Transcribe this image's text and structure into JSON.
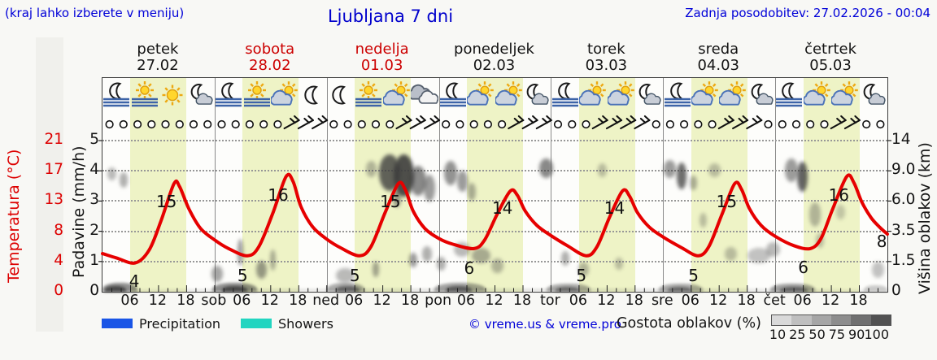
{
  "header": {
    "hint": "(kraj lahko izberete v meniju)",
    "title": "Ljubljana 7 dni",
    "updated": "Zadnja posodobitev: 27.02.2026 - 00:04"
  },
  "colors": {
    "blue_text": "#0000d8",
    "curve_red": "#e60000",
    "holiday_red": "#cc0000",
    "day_band": "#eef3c6",
    "precip_swatch": "#1a55e6",
    "showers_swatch": "#22d5c0"
  },
  "days": [
    {
      "name": "petek",
      "date": "27.02",
      "holiday": false
    },
    {
      "name": "sobota",
      "date": "28.02",
      "holiday": true
    },
    {
      "name": "nedelja",
      "date": "01.03",
      "holiday": true
    },
    {
      "name": "ponedeljek",
      "date": "02.03",
      "holiday": false
    },
    {
      "name": "torek",
      "date": "03.03",
      "holiday": false
    },
    {
      "name": "sreda",
      "date": "04.03",
      "holiday": false
    },
    {
      "name": "četrtek",
      "date": "05.03",
      "holiday": false
    }
  ],
  "axes": {
    "temp_label": "Temperatura (°C)",
    "temp_ticks": [
      "21",
      "17",
      "13",
      "8",
      "4",
      "0"
    ],
    "precip_label": "Padavine (mm/h)",
    "precip_ticks": [
      "5",
      "4",
      "3",
      "2",
      "1",
      "0"
    ],
    "cloud_label": "Višina oblakov (km)",
    "cloud_ticks": [
      "14",
      "9.0",
      "6.0",
      "3.5",
      "1.5",
      "0"
    ],
    "x_labels": [
      {
        "t": 6,
        "text": "06"
      },
      {
        "t": 12,
        "text": "12"
      },
      {
        "t": 18,
        "text": "18"
      },
      {
        "t": 24,
        "text": "sob"
      },
      {
        "t": 30,
        "text": "06"
      },
      {
        "t": 36,
        "text": "12"
      },
      {
        "t": 42,
        "text": "18"
      },
      {
        "t": 48,
        "text": "ned"
      },
      {
        "t": 54,
        "text": "06"
      },
      {
        "t": 60,
        "text": "12"
      },
      {
        "t": 66,
        "text": "18"
      },
      {
        "t": 72,
        "text": "pon"
      },
      {
        "t": 78,
        "text": "06"
      },
      {
        "t": 84,
        "text": "12"
      },
      {
        "t": 90,
        "text": "18"
      },
      {
        "t": 96,
        "text": "tor"
      },
      {
        "t": 102,
        "text": "06"
      },
      {
        "t": 108,
        "text": "12"
      },
      {
        "t": 114,
        "text": "18"
      },
      {
        "t": 120,
        "text": "sre"
      },
      {
        "t": 126,
        "text": "06"
      },
      {
        "t": 132,
        "text": "12"
      },
      {
        "t": 138,
        "text": "18"
      },
      {
        "t": 144,
        "text": "čet"
      },
      {
        "t": 150,
        "text": "06"
      },
      {
        "t": 156,
        "text": "12"
      },
      {
        "t": 162,
        "text": "18"
      }
    ]
  },
  "icons": [
    "moon-fog",
    "sun-fog",
    "sun",
    "moon-cloud",
    "moon-fog",
    "sun-fog",
    "sun-cloud",
    "moon",
    "moon",
    "sun-fog",
    "sun-cloud",
    "cloud",
    "moon-fog",
    "sun-cloud",
    "sun-cloud",
    "moon-cloud",
    "moon-fog",
    "sun-cloud",
    "sun-cloud",
    "moon-cloud",
    "moon-fog",
    "sun-cloud",
    "sun-cloud",
    "moon-cloud",
    "moon-fog",
    "sun-cloud",
    "sun-cloud",
    "moon-cloud"
  ],
  "wind": [
    "cccccccc",
    "cccccbbb",
    "cccccbbb",
    "cccccbbb",
    "cccbbbbc",
    "ccccbbbc",
    "ccccbbcc"
  ],
  "chart_data": {
    "type": "line",
    "title": "Ljubljana 7 dni",
    "x_unit": "hours from 27.02.2026 00:00 (7 days)",
    "x_range": [
      0,
      168
    ],
    "temp_axis_c": [
      0,
      4,
      8,
      13,
      17,
      21
    ],
    "precip_axis_mm_h": [
      0,
      1,
      2,
      3,
      4,
      5
    ],
    "cloud_height_axis_km": [
      0,
      1.5,
      3.5,
      6.0,
      9.0,
      14
    ],
    "daily_max_c": [
      15,
      16,
      15,
      14,
      14,
      15,
      16
    ],
    "daily_min_c": [
      4,
      5,
      5,
      6,
      5,
      5,
      6
    ],
    "end_temp_c": 8,
    "series": [
      {
        "name": "Temperatura (°C)",
        "color": "#e60000",
        "points": [
          [
            0,
            5.3
          ],
          [
            3,
            4.7
          ],
          [
            7,
            4
          ],
          [
            10,
            5.8
          ],
          [
            12.5,
            9.8
          ],
          [
            15.3,
            15
          ],
          [
            16.5,
            14.6
          ],
          [
            18.5,
            11.5
          ],
          [
            21,
            8.8
          ],
          [
            24,
            7.2
          ],
          [
            27,
            6
          ],
          [
            31,
            5
          ],
          [
            33.5,
            6.3
          ],
          [
            36.5,
            11
          ],
          [
            39.3,
            16
          ],
          [
            40.8,
            15.3
          ],
          [
            42.5,
            11.8
          ],
          [
            45,
            9
          ],
          [
            48,
            7.3
          ],
          [
            51,
            6.1
          ],
          [
            55,
            5
          ],
          [
            57.5,
            6.3
          ],
          [
            60.5,
            11
          ],
          [
            63.3,
            15
          ],
          [
            64.8,
            14.2
          ],
          [
            66.5,
            11.2
          ],
          [
            69,
            8.8
          ],
          [
            72,
            7.4
          ],
          [
            75,
            6.6
          ],
          [
            79.5,
            6
          ],
          [
            81.8,
            7.2
          ],
          [
            84.5,
            10.8
          ],
          [
            87.3,
            14
          ],
          [
            88.8,
            13.4
          ],
          [
            90.5,
            11.2
          ],
          [
            93,
            9.2
          ],
          [
            96,
            7.8
          ],
          [
            99.5,
            6.4
          ],
          [
            103.5,
            5
          ],
          [
            105.8,
            6.2
          ],
          [
            108.5,
            10.3
          ],
          [
            111.3,
            14
          ],
          [
            112.8,
            13.3
          ],
          [
            114.5,
            11
          ],
          [
            117,
            9
          ],
          [
            120,
            7.6
          ],
          [
            124,
            6.1
          ],
          [
            127.5,
            5
          ],
          [
            129.8,
            6.3
          ],
          [
            132.5,
            10.6
          ],
          [
            135.3,
            15
          ],
          [
            136.8,
            14.2
          ],
          [
            138.5,
            11.5
          ],
          [
            141,
            9.2
          ],
          [
            144,
            7.7
          ],
          [
            148,
            6.4
          ],
          [
            151.5,
            6
          ],
          [
            153.8,
            7.4
          ],
          [
            156.3,
            11.5
          ],
          [
            159.3,
            16
          ],
          [
            160.8,
            15.2
          ],
          [
            162.5,
            12.5
          ],
          [
            164.5,
            10.3
          ],
          [
            166.3,
            9
          ],
          [
            168,
            8
          ]
        ]
      }
    ],
    "peak_labels": [
      [
        13.7,
        12.5,
        "15"
      ],
      [
        37.6,
        13.4,
        "16"
      ],
      [
        61.6,
        12.5,
        "15"
      ],
      [
        85.6,
        11.6,
        "14"
      ],
      [
        109.6,
        11.6,
        "14"
      ],
      [
        133.6,
        12.5,
        "15"
      ],
      [
        157.6,
        13.4,
        "16"
      ]
    ],
    "low_labels": [
      [
        6.8,
        1.5,
        "4"
      ],
      [
        30,
        2.3,
        "5"
      ],
      [
        54,
        2.3,
        "5"
      ],
      [
        78.5,
        3.3,
        "6"
      ],
      [
        102.5,
        2.3,
        "5"
      ],
      [
        126.5,
        2.3,
        "5"
      ],
      [
        150,
        3.4,
        "6"
      ],
      [
        166.8,
        7,
        "8"
      ]
    ],
    "clouds": [
      [
        2,
        8.7,
        2,
        0.45,
        0.35
      ],
      [
        4.5,
        8.1,
        1.8,
        0.5,
        0.4
      ],
      [
        24.5,
        0.9,
        2.5,
        0.55,
        0.45
      ],
      [
        29.5,
        2.1,
        1.2,
        0.9,
        0.5
      ],
      [
        34,
        1.1,
        2.2,
        0.6,
        0.5
      ],
      [
        36.5,
        1.6,
        1.2,
        0.7,
        0.4
      ],
      [
        52,
        0.8,
        4,
        0.5,
        0.35
      ],
      [
        57.5,
        9.3,
        2.2,
        0.55,
        0.35
      ],
      [
        58.5,
        1.1,
        1.5,
        0.5,
        0.45
      ],
      [
        61.5,
        8.8,
        4.5,
        1.2,
        0.8
      ],
      [
        64.5,
        8.5,
        4.5,
        1.4,
        0.9
      ],
      [
        67.5,
        8,
        3.5,
        1,
        0.6
      ],
      [
        70,
        7.3,
        2.5,
        0.9,
        0.5
      ],
      [
        63,
        6.3,
        1.8,
        0.6,
        0.5
      ],
      [
        66.5,
        1.6,
        1.8,
        0.5,
        0.5
      ],
      [
        69.5,
        2,
        2.2,
        0.5,
        0.4
      ],
      [
        72.5,
        1.4,
        2,
        0.45,
        0.4
      ],
      [
        74.5,
        8.8,
        2.8,
        0.8,
        0.55
      ],
      [
        77,
        8,
        2.2,
        0.7,
        0.5
      ],
      [
        79,
        6.9,
        1.8,
        0.6,
        0.4
      ],
      [
        77,
        2.3,
        3.5,
        0.5,
        0.35
      ],
      [
        81,
        1.9,
        4,
        0.5,
        0.4
      ],
      [
        84.5,
        1.3,
        2.5,
        0.5,
        0.35
      ],
      [
        95,
        9.4,
        3,
        0.65,
        0.6
      ],
      [
        99,
        1.7,
        1.8,
        0.5,
        0.4
      ],
      [
        103,
        1.1,
        2.4,
        0.45,
        0.35
      ],
      [
        107,
        9.1,
        2,
        0.45,
        0.3
      ],
      [
        110.5,
        1.4,
        1.8,
        0.4,
        0.3
      ],
      [
        121.5,
        9.3,
        2.6,
        0.6,
        0.5
      ],
      [
        124,
        8.5,
        2.2,
        0.9,
        0.75
      ],
      [
        126.5,
        7.8,
        1.6,
        0.5,
        0.4
      ],
      [
        131,
        9.1,
        2.6,
        0.45,
        0.3
      ],
      [
        128.5,
        4.4,
        1.6,
        0.5,
        0.3
      ],
      [
        134.5,
        2,
        2.6,
        0.45,
        0.3
      ],
      [
        140.5,
        1.9,
        5,
        0.5,
        0.3
      ],
      [
        143.5,
        2.3,
        3,
        0.5,
        0.35
      ],
      [
        147.5,
        9.1,
        2.8,
        0.8,
        0.5
      ],
      [
        149.8,
        8.4,
        2.2,
        1,
        0.8
      ],
      [
        152.5,
        4.9,
        2.6,
        0.8,
        0.35
      ],
      [
        153.5,
        2.9,
        1.8,
        0.5,
        0.3
      ],
      [
        158,
        5.1,
        1.8,
        0.5,
        0.25
      ],
      [
        166,
        1.1,
        2.6,
        0.55,
        0.3
      ]
    ],
    "fog": [
      [
        0,
        168,
        0.12,
        4
      ],
      [
        0,
        7.5,
        0.55,
        11
      ],
      [
        0.5,
        5,
        0.8,
        7
      ],
      [
        23.5,
        33,
        0.55,
        11
      ],
      [
        25.5,
        31,
        0.8,
        7
      ],
      [
        48,
        56,
        0.4,
        11
      ],
      [
        50,
        55,
        0.6,
        7
      ],
      [
        71,
        82,
        0.45,
        11
      ],
      [
        73.5,
        79,
        0.65,
        7
      ],
      [
        95,
        104.5,
        0.4,
        10
      ],
      [
        97,
        102,
        0.55,
        6
      ],
      [
        119,
        128.5,
        0.4,
        10
      ],
      [
        121,
        126,
        0.55,
        6
      ],
      [
        143,
        152.5,
        0.45,
        10
      ],
      [
        145,
        151,
        0.6,
        6
      ],
      [
        163,
        168,
        0.25,
        8
      ]
    ]
  },
  "legend": {
    "precip_label": "Precipitation",
    "showers_label": "Showers",
    "copyright": "© vreme.us & vreme.pro",
    "density_label": "Gostota oblakov (%)",
    "density_ticks": [
      "10",
      "25",
      "50",
      "75",
      "90",
      "100"
    ],
    "density_colors": [
      "#d9d9d9",
      "#bfbfbf",
      "#a6a6a6",
      "#8d8d8d",
      "#707070",
      "#525252"
    ]
  }
}
